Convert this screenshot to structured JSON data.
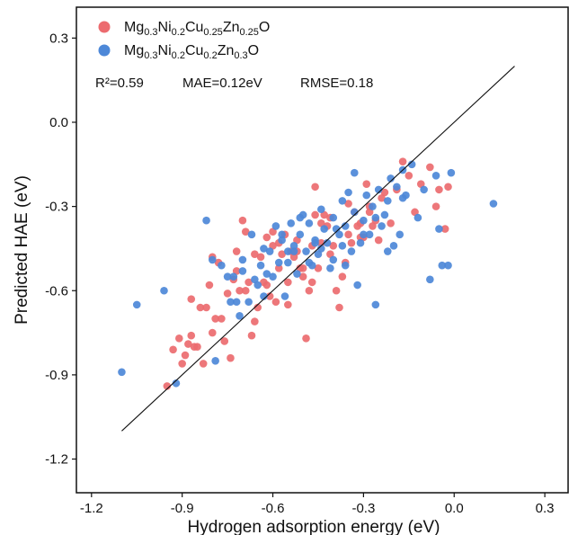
{
  "chart_data": {
    "type": "scatter",
    "xlabel": "Hydrogen adsorption energy (eV)",
    "ylabel": "Predicted HAE (eV)",
    "xlim": [
      -1.25,
      0.38
    ],
    "ylim": [
      -1.32,
      0.41
    ],
    "xticks": [
      -1.2,
      -0.9,
      -0.6,
      -0.3,
      0.0,
      0.3
    ],
    "yticks": [
      -1.2,
      -0.9,
      -0.6,
      -0.3,
      0.0,
      0.3
    ],
    "xtick_labels": [
      "-1.2",
      "-0.9",
      "-0.6",
      "-0.3",
      "0.0",
      "0.3"
    ],
    "ytick_labels": [
      "-1.2",
      "-0.9",
      "-0.6",
      "-0.3",
      "0.0",
      "0.3"
    ],
    "grid": false,
    "legend_position": "top-left",
    "stats": {
      "r2": "R²=0.59",
      "mae": "MAE=0.12eV",
      "rmse": "RMSE=0.18"
    },
    "reference_line": {
      "x": [
        -1.1,
        0.2
      ],
      "y": [
        -1.1,
        0.2
      ]
    },
    "series": [
      {
        "name": "Mg0.3Ni0.2Cu0.25Zn0.25O",
        "name_parts": [
          {
            "t": "Mg",
            "s": ""
          },
          {
            "t": "0.3",
            "s": "sub"
          },
          {
            "t": "Ni",
            "s": ""
          },
          {
            "t": "0.2",
            "s": "sub"
          },
          {
            "t": "Cu",
            "s": ""
          },
          {
            "t": "0.25",
            "s": "sub"
          },
          {
            "t": "Zn",
            "s": ""
          },
          {
            "t": "0.25",
            "s": "sub"
          },
          {
            "t": "O",
            "s": ""
          }
        ],
        "color": "#ec6b6f",
        "x": [
          -0.95,
          -0.93,
          -0.91,
          -0.9,
          -0.89,
          -0.88,
          -0.87,
          -0.86,
          -0.85,
          -0.84,
          -0.83,
          -0.82,
          -0.81,
          -0.8,
          -0.79,
          -0.78,
          -0.77,
          -0.76,
          -0.75,
          -0.74,
          -0.73,
          -0.72,
          -0.71,
          -0.7,
          -0.69,
          -0.68,
          -0.67,
          -0.66,
          -0.65,
          -0.64,
          -0.63,
          -0.62,
          -0.61,
          -0.6,
          -0.59,
          -0.58,
          -0.57,
          -0.56,
          -0.55,
          -0.54,
          -0.53,
          -0.52,
          -0.51,
          -0.5,
          -0.49,
          -0.48,
          -0.47,
          -0.46,
          -0.45,
          -0.44,
          -0.43,
          -0.42,
          -0.41,
          -0.4,
          -0.39,
          -0.38,
          -0.37,
          -0.36,
          -0.35,
          -0.34,
          -0.33,
          -0.32,
          -0.31,
          -0.3,
          -0.29,
          -0.28,
          -0.27,
          -0.26,
          -0.25,
          -0.23,
          -0.21,
          -0.19,
          -0.17,
          -0.15,
          -0.13,
          -0.11,
          -0.08,
          -0.06,
          -0.05,
          -0.03,
          -0.02,
          -0.46,
          -0.5,
          -0.72,
          -0.58,
          -0.62,
          -0.69,
          -0.8,
          -0.55,
          -0.35,
          -0.28,
          -0.24,
          -0.41,
          -0.47,
          -0.52,
          -0.66,
          -0.31,
          -0.44,
          -0.6,
          -0.87
        ],
        "y": [
          -0.94,
          -0.81,
          -0.77,
          -0.86,
          -0.83,
          -0.79,
          -0.63,
          -0.8,
          -0.8,
          -0.66,
          -0.86,
          -0.66,
          -0.58,
          -0.75,
          -0.7,
          -0.5,
          -0.7,
          -0.78,
          -0.61,
          -0.84,
          -0.56,
          -0.46,
          -0.6,
          -0.35,
          -0.6,
          -0.57,
          -0.76,
          -0.71,
          -0.66,
          -0.48,
          -0.57,
          -0.58,
          -0.62,
          -0.39,
          -0.64,
          -0.52,
          -0.47,
          -0.4,
          -0.57,
          -0.46,
          -0.48,
          -0.42,
          -0.52,
          -0.55,
          -0.77,
          -0.6,
          -0.44,
          -0.23,
          -0.52,
          -0.43,
          -0.33,
          -0.37,
          -0.47,
          -0.44,
          -0.6,
          -0.66,
          -0.55,
          -0.5,
          -0.29,
          -0.43,
          -0.32,
          -0.37,
          -0.36,
          -0.41,
          -0.22,
          -0.3,
          -0.37,
          -0.35,
          -0.42,
          -0.25,
          -0.36,
          -0.24,
          -0.14,
          -0.19,
          -0.32,
          -0.22,
          -0.16,
          -0.3,
          -0.24,
          -0.38,
          -0.23,
          -0.33,
          -0.52,
          -0.53,
          -0.43,
          -0.41,
          -0.39,
          -0.48,
          -0.65,
          -0.4,
          -0.32,
          -0.27,
          -0.34,
          -0.57,
          -0.46,
          -0.47,
          -0.41,
          -0.36,
          -0.44,
          -0.76
        ]
      },
      {
        "name": "Mg0.3Ni0.2Cu0.2Zn0.3O",
        "name_parts": [
          {
            "t": "Mg",
            "s": ""
          },
          {
            "t": "0.3",
            "s": "sub"
          },
          {
            "t": "Ni",
            "s": ""
          },
          {
            "t": "0.2",
            "s": "sub"
          },
          {
            "t": "Cu",
            "s": ""
          },
          {
            "t": "0.2",
            "s": "sub"
          },
          {
            "t": "Zn",
            "s": ""
          },
          {
            "t": "0.3",
            "s": "sub"
          },
          {
            "t": "O",
            "s": ""
          }
        ],
        "color": "#4d88d8",
        "x": [
          -1.1,
          -1.05,
          -0.96,
          -0.92,
          -0.82,
          -0.8,
          -0.79,
          -0.77,
          -0.75,
          -0.74,
          -0.73,
          -0.72,
          -0.71,
          -0.7,
          -0.68,
          -0.67,
          -0.66,
          -0.65,
          -0.64,
          -0.63,
          -0.62,
          -0.61,
          -0.6,
          -0.59,
          -0.58,
          -0.57,
          -0.56,
          -0.55,
          -0.54,
          -0.53,
          -0.52,
          -0.51,
          -0.5,
          -0.49,
          -0.48,
          -0.47,
          -0.46,
          -0.45,
          -0.44,
          -0.43,
          -0.42,
          -0.41,
          -0.4,
          -0.39,
          -0.38,
          -0.37,
          -0.36,
          -0.35,
          -0.34,
          -0.33,
          -0.32,
          -0.31,
          -0.3,
          -0.29,
          -0.28,
          -0.27,
          -0.26,
          -0.25,
          -0.24,
          -0.23,
          -0.22,
          -0.21,
          -0.2,
          -0.19,
          -0.18,
          -0.17,
          -0.16,
          -0.14,
          -0.12,
          -0.1,
          -0.08,
          -0.06,
          -0.04,
          -0.02,
          -0.01,
          0.13,
          -0.57,
          -0.53,
          -0.44,
          -0.48,
          -0.33,
          -0.26,
          -0.4,
          -0.36,
          -0.63,
          -0.7,
          -0.51,
          -0.55,
          -0.3,
          -0.22,
          -0.46,
          -0.37,
          -0.17,
          -0.05
        ],
        "y": [
          -0.89,
          -0.65,
          -0.6,
          -0.93,
          -0.35,
          -0.49,
          -0.85,
          -0.51,
          -0.55,
          -0.64,
          -0.55,
          -0.64,
          -0.69,
          -0.53,
          -0.64,
          -0.4,
          -0.56,
          -0.58,
          -0.51,
          -0.62,
          -0.54,
          -0.46,
          -0.55,
          -0.37,
          -0.5,
          -0.42,
          -0.62,
          -0.5,
          -0.36,
          -0.46,
          -0.54,
          -0.4,
          -0.33,
          -0.46,
          -0.36,
          -0.51,
          -0.42,
          -0.47,
          -0.31,
          -0.38,
          -0.43,
          -0.52,
          -0.34,
          -0.38,
          -0.4,
          -0.28,
          -0.51,
          -0.25,
          -0.46,
          -0.32,
          -0.58,
          -0.43,
          -0.35,
          -0.26,
          -0.4,
          -0.3,
          -0.65,
          -0.24,
          -0.37,
          -0.33,
          -0.28,
          -0.2,
          -0.44,
          -0.23,
          -0.4,
          -0.17,
          -0.26,
          -0.15,
          -0.34,
          -0.24,
          -0.56,
          -0.19,
          -0.51,
          -0.51,
          -0.18,
          -0.29,
          -0.4,
          -0.44,
          -0.45,
          -0.5,
          -0.18,
          -0.34,
          -0.49,
          -0.37,
          -0.45,
          -0.49,
          -0.34,
          -0.46,
          -0.4,
          -0.46,
          -0.43,
          -0.44,
          -0.27,
          -0.38
        ]
      }
    ]
  }
}
